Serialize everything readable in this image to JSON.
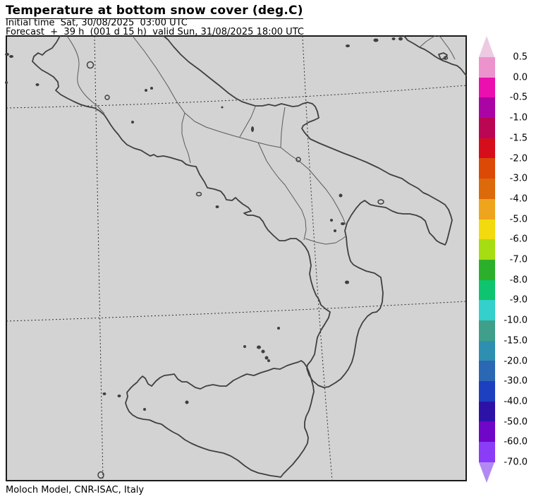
{
  "header": {
    "title": "Temperature at bottom snow cover (deg.C)",
    "initial_time": "Initial time  Sat, 30/08/2025  03:00 UTC",
    "forecast": "Forecast  +  39 h  (001 d 15 h)  valid Sun, 31/08/2025 18:00 UTC"
  },
  "footer": {
    "credit": "Moloch Model, CNR-ISAC, Italy"
  },
  "map": {
    "background": "#d3d3d3",
    "frame_color": "#1a1a1a",
    "coastline_color": "#3f3f3f",
    "region_border_color": "#5a5a5a",
    "gridline_color": "#2f2f2f"
  },
  "colorbar": {
    "levels": [
      "0.5",
      "0.0",
      "-0.5",
      "-1.0",
      "-1.5",
      "-2.0",
      "-3.0",
      "-4.0",
      "-5.0",
      "-6.0",
      "-7.0",
      "-8.0",
      "-9.0",
      "-10.0",
      "-15.0",
      "-20.0",
      "-30.0",
      "-40.0",
      "-50.0",
      "-60.0",
      "-70.0"
    ],
    "segment_colors": [
      "#ec93cd",
      "#ea0fae",
      "#ab04a5",
      "#ba0653",
      "#d60e1b",
      "#dc4906",
      "#dc6a0a",
      "#eea41c",
      "#f2da0e",
      "#a6dc12",
      "#2cb02c",
      "#0fc46e",
      "#33d0cc",
      "#3f9f8b",
      "#2f8fb0",
      "#2a67b5",
      "#1c40c0",
      "#2d12a8",
      "#6f06c8",
      "#8b3cf6"
    ],
    "arrow_top_color": "#edc9e2",
    "arrow_bottom_color": "#b289f2"
  }
}
